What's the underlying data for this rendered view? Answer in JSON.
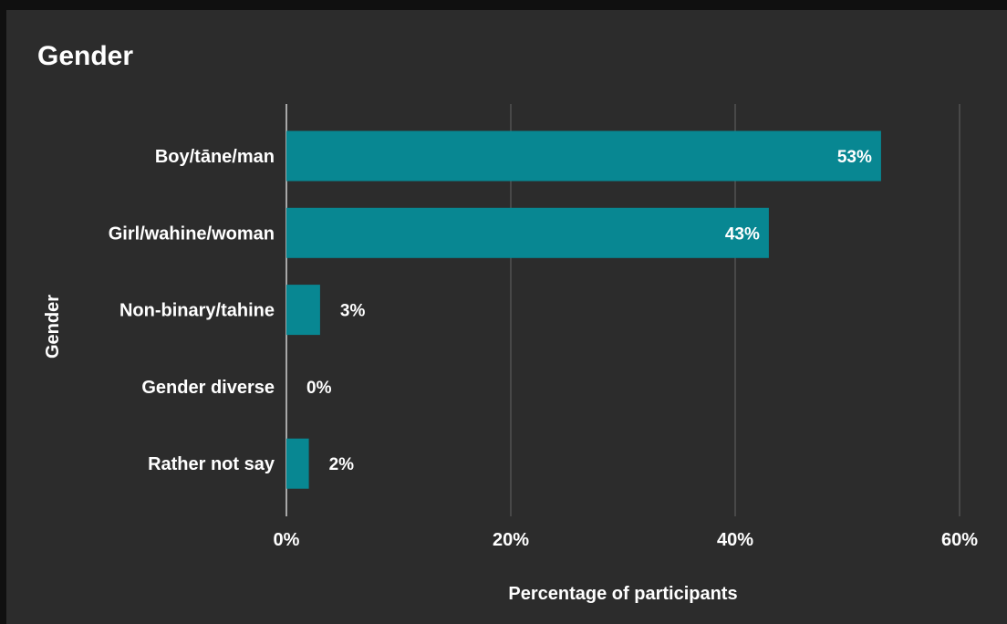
{
  "chart_data": {
    "type": "bar",
    "orientation": "horizontal",
    "title": "Gender",
    "xlabel": "Percentage of participants",
    "ylabel": "Gender",
    "categories": [
      "Boy/tāne/man",
      "Girl/wahine/woman",
      "Non-binary/tahine",
      "Gender diverse",
      "Rather not say"
    ],
    "values": [
      53,
      43,
      3,
      0,
      2
    ],
    "data_labels": [
      "53%",
      "43%",
      "3%",
      "0%",
      "2%"
    ],
    "xlim": [
      0,
      60
    ],
    "xticks": [
      0,
      20,
      40,
      60
    ],
    "xtick_labels": [
      "0%",
      "20%",
      "40%",
      "60%"
    ],
    "grid": true,
    "legend": "none",
    "colors": {
      "bar": "#088792",
      "background": "#2c2c2c",
      "gridline": "#585858",
      "text": "#ffffff"
    }
  }
}
